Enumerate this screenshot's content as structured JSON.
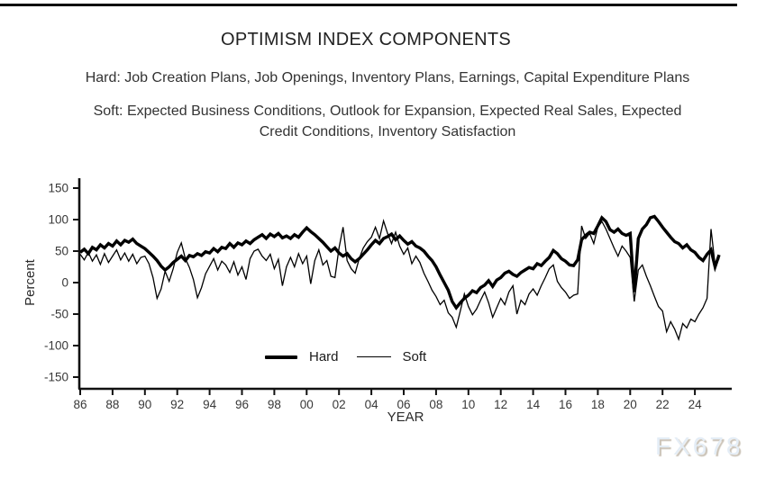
{
  "header": {
    "title": "OPTIMISM INDEX COMPONENTS",
    "hard_line": "Hard: Job Creation Plans, Job Openings, Inventory Plans, Earnings, Capital Expenditure Plans",
    "soft_line_1": "Soft: Expected Business Conditions, Outlook for Expansion, Expected Real Sales, Expected",
    "soft_line_2": "Credit Conditions, Inventory Satisfaction"
  },
  "watermark": "FX678",
  "chart_data": {
    "type": "line",
    "xlabel": "YEAR",
    "ylabel": "Percent",
    "ylim": [
      -150,
      150
    ],
    "xlim": [
      1986,
      2025.6
    ],
    "grid": false,
    "legend_position": "inside-bottom-center",
    "line_color": "#000000",
    "y_ticks": [
      150,
      100,
      50,
      0,
      -50,
      -100,
      -150
    ],
    "x_ticks": [
      {
        "label": "86",
        "year": 1986
      },
      {
        "label": "88",
        "year": 1988
      },
      {
        "label": "90",
        "year": 1990
      },
      {
        "label": "92",
        "year": 1992
      },
      {
        "label": "94",
        "year": 1994
      },
      {
        "label": "96",
        "year": 1996
      },
      {
        "label": "98",
        "year": 1998
      },
      {
        "label": "00",
        "year": 2000
      },
      {
        "label": "02",
        "year": 2002
      },
      {
        "label": "04",
        "year": 2004
      },
      {
        "label": "06",
        "year": 2006
      },
      {
        "label": "08",
        "year": 2008
      },
      {
        "label": "10",
        "year": 2010
      },
      {
        "label": "12",
        "year": 2012
      },
      {
        "label": "14",
        "year": 2014
      },
      {
        "label": "16",
        "year": 2016
      },
      {
        "label": "18",
        "year": 2018
      },
      {
        "label": "20",
        "year": 2020
      },
      {
        "label": "22",
        "year": 2022
      },
      {
        "label": "24",
        "year": 2024
      }
    ],
    "x_start": 1986,
    "x_step": 0.25,
    "series": [
      {
        "name": "Soft",
        "line_width": 1.3,
        "values": [
          45,
          36,
          48,
          34,
          44,
          29,
          46,
          32,
          42,
          52,
          36,
          47,
          34,
          45,
          30,
          40,
          42,
          30,
          8,
          -25,
          -10,
          18,
          2,
          22,
          48,
          63,
          38,
          24,
          5,
          -24,
          -8,
          14,
          26,
          38,
          20,
          34,
          28,
          16,
          33,
          12,
          25,
          5,
          38,
          50,
          53,
          42,
          35,
          45,
          22,
          37,
          -5,
          25,
          40,
          25,
          46,
          30,
          42,
          -2,
          35,
          52,
          28,
          35,
          10,
          8,
          55,
          88,
          35,
          22,
          15,
          38,
          55,
          65,
          72,
          88,
          70,
          98,
          78,
          62,
          80,
          58,
          45,
          55,
          30,
          42,
          32,
          15,
          2,
          -12,
          -22,
          -35,
          -28,
          -48,
          -55,
          -71,
          -45,
          -18,
          -38,
          -51,
          -42,
          -28,
          -15,
          -32,
          -55,
          -40,
          -25,
          -35,
          -15,
          -5,
          -50,
          -28,
          -35,
          -18,
          -10,
          -20,
          -5,
          8,
          22,
          28,
          2,
          -8,
          -15,
          -25,
          -20,
          -18,
          90,
          70,
          78,
          62,
          88,
          97,
          85,
          70,
          55,
          42,
          58,
          50,
          40,
          -30,
          20,
          28,
          10,
          -5,
          -22,
          -38,
          -45,
          -78,
          -62,
          -74,
          -90,
          -65,
          -72,
          -58,
          -62,
          -50,
          -40,
          -25,
          85,
          28,
          38
        ]
      },
      {
        "name": "Hard",
        "line_width": 3.4,
        "values": [
          48,
          53,
          46,
          56,
          52,
          60,
          55,
          62,
          58,
          66,
          60,
          67,
          64,
          69,
          62,
          58,
          54,
          48,
          42,
          35,
          26,
          20,
          25,
          32,
          37,
          42,
          35,
          43,
          41,
          46,
          43,
          49,
          47,
          54,
          49,
          56,
          54,
          62,
          56,
          63,
          60,
          66,
          62,
          68,
          72,
          76,
          70,
          77,
          73,
          78,
          71,
          74,
          70,
          76,
          72,
          80,
          87,
          81,
          76,
          70,
          64,
          57,
          50,
          55,
          47,
          42,
          46,
          38,
          33,
          38,
          45,
          52,
          60,
          67,
          62,
          70,
          73,
          77,
          68,
          74,
          67,
          61,
          65,
          58,
          55,
          50,
          42,
          35,
          25,
          12,
          0,
          -12,
          -30,
          -40,
          -32,
          -25,
          -20,
          -13,
          -16,
          -8,
          -4,
          3,
          -6,
          4,
          8,
          15,
          18,
          13,
          10,
          16,
          20,
          24,
          22,
          30,
          27,
          34,
          40,
          51,
          46,
          38,
          34,
          28,
          27,
          36,
          68,
          75,
          80,
          78,
          90,
          103,
          97,
          84,
          80,
          85,
          78,
          75,
          78,
          -15,
          70,
          85,
          92,
          103,
          105,
          97,
          88,
          80,
          72,
          65,
          62,
          55,
          60,
          52,
          48,
          40,
          35,
          45,
          52,
          25,
          44
        ]
      }
    ],
    "legend": [
      {
        "label": "Hard",
        "style": "thick"
      },
      {
        "label": "Soft",
        "style": "thin"
      }
    ]
  }
}
